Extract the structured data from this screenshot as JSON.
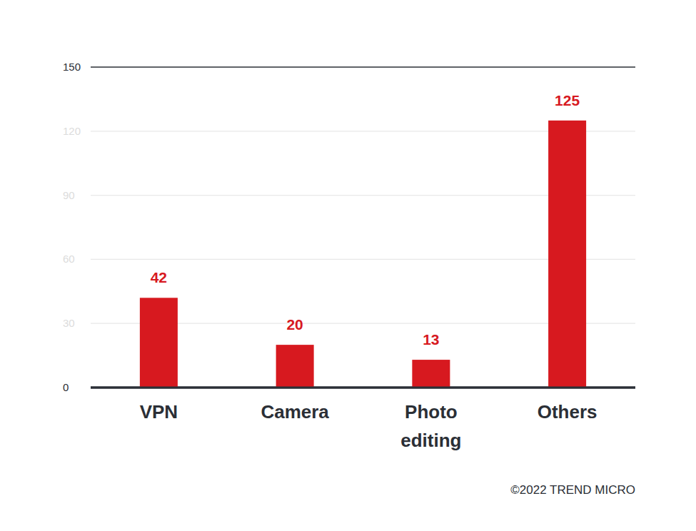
{
  "chart_data": {
    "type": "bar",
    "categories": [
      "VPN",
      "Camera",
      "Photo editing",
      "Others"
    ],
    "values": [
      42,
      20,
      13,
      125
    ],
    "color": "#d7191f",
    "ylim": [
      0,
      150
    ],
    "yticks": [
      0,
      30,
      60,
      90,
      120,
      150
    ],
    "grid": true,
    "data_labels": true,
    "annotations": [
      "©2022 TREND MICRO"
    ]
  }
}
